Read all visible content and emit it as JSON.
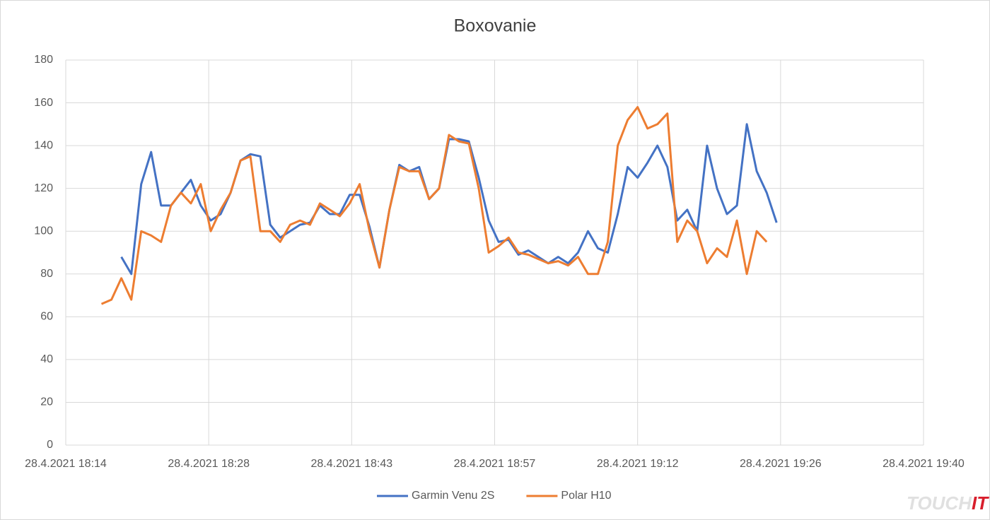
{
  "chart_data": {
    "type": "line",
    "title": "Boxovanie",
    "x": [
      1098,
      1099,
      1100,
      1101,
      1102,
      1103,
      1104,
      1105,
      1106,
      1107,
      1108,
      1109,
      1110,
      1111,
      1112,
      1113,
      1114,
      1115,
      1116,
      1117,
      1118,
      1119,
      1120,
      1121,
      1122,
      1123,
      1124,
      1125,
      1126,
      1127,
      1128,
      1129,
      1130,
      1131,
      1132,
      1133,
      1134,
      1135,
      1136,
      1137,
      1138,
      1139,
      1140,
      1141,
      1142,
      1143,
      1144,
      1145,
      1146,
      1147,
      1148,
      1149,
      1150,
      1151,
      1152,
      1153,
      1154,
      1155,
      1156,
      1157,
      1158,
      1159,
      1160,
      1161,
      1162,
      1163,
      1164,
      1165,
      1166
    ],
    "series": [
      {
        "name": "Garmin Venu 2S",
        "color": "#4472c4",
        "values": [
          null,
          null,
          88,
          80,
          122,
          137,
          112,
          112,
          118,
          124,
          112,
          105,
          108,
          118,
          133,
          136,
          135,
          103,
          97,
          100,
          103,
          104,
          112,
          108,
          108,
          117,
          117,
          102,
          83,
          110,
          131,
          128,
          130,
          115,
          120,
          143,
          143,
          142,
          125,
          105,
          95,
          96,
          89,
          91,
          88,
          85,
          88,
          85,
          90,
          100,
          92,
          90,
          108,
          130,
          125,
          132,
          140,
          130,
          105,
          110,
          100,
          140,
          120,
          108,
          112,
          150,
          128,
          118,
          104
        ]
      },
      {
        "name": "Polar H10",
        "color": "#ed7d31",
        "values": [
          66,
          68,
          78,
          68,
          100,
          98,
          95,
          112,
          118,
          113,
          122,
          100,
          110,
          118,
          133,
          135,
          100,
          100,
          95,
          103,
          105,
          103,
          113,
          110,
          107,
          113,
          122,
          100,
          83,
          110,
          130,
          128,
          128,
          115,
          120,
          145,
          142,
          141,
          120,
          90,
          93,
          97,
          90,
          89,
          87,
          85,
          86,
          84,
          88,
          80,
          80,
          95,
          140,
          152,
          158,
          148,
          150,
          155,
          95,
          105,
          100,
          85,
          92,
          88,
          105,
          80,
          100,
          95,
          null
        ]
      }
    ],
    "xlim": [
      1094.4,
      1180.8
    ],
    "xticks": [
      {
        "value": 1094.4,
        "label": "28.4.2021 18:14"
      },
      {
        "value": 1108.8,
        "label": "28.4.2021 18:28"
      },
      {
        "value": 1123.2,
        "label": "28.4.2021 18:43"
      },
      {
        "value": 1137.6,
        "label": "28.4.2021 18:57"
      },
      {
        "value": 1152,
        "label": "28.4.2021 19:12"
      },
      {
        "value": 1166.4,
        "label": "28.4.2021 19:26"
      },
      {
        "value": 1180.8,
        "label": "28.4.2021 19:40"
      }
    ],
    "ylim": [
      0,
      180
    ],
    "yticks": [
      0,
      20,
      40,
      60,
      80,
      100,
      120,
      140,
      160,
      180
    ],
    "grid": true,
    "legend": "bottom"
  },
  "watermark": [
    "TOUCH",
    "IT"
  ]
}
